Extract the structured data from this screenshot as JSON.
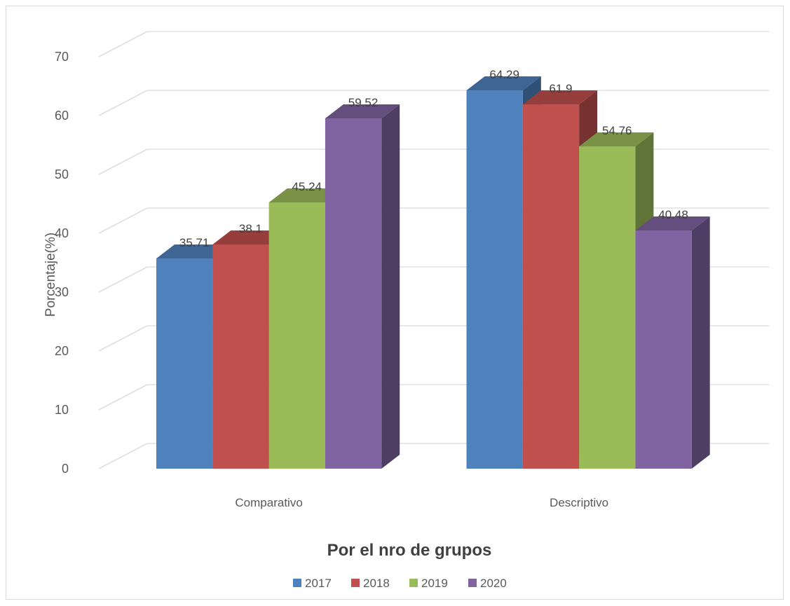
{
  "chart_data": {
    "type": "bar",
    "categories": [
      "Comparativo",
      "Descriptivo"
    ],
    "series": [
      {
        "name": "2017",
        "values": [
          35.71,
          64.29
        ],
        "color": "#4F81BD"
      },
      {
        "name": "2018",
        "values": [
          38.1,
          61.9
        ],
        "color": "#C0504D"
      },
      {
        "name": "2019",
        "values": [
          45.24,
          54.76
        ],
        "color": "#9BBB59"
      },
      {
        "name": "2020",
        "values": [
          59.52,
          40.48
        ],
        "color": "#8064A2"
      }
    ],
    "title": "",
    "xlabel": "Por el nro de grupos",
    "ylabel": "Porcentaje(%)",
    "ylim": [
      0,
      70
    ],
    "yticks": [
      0,
      10,
      20,
      30,
      40,
      50,
      60,
      70
    ],
    "grid": true,
    "legend_position": "bottom",
    "style": "3d-clustered-column"
  }
}
